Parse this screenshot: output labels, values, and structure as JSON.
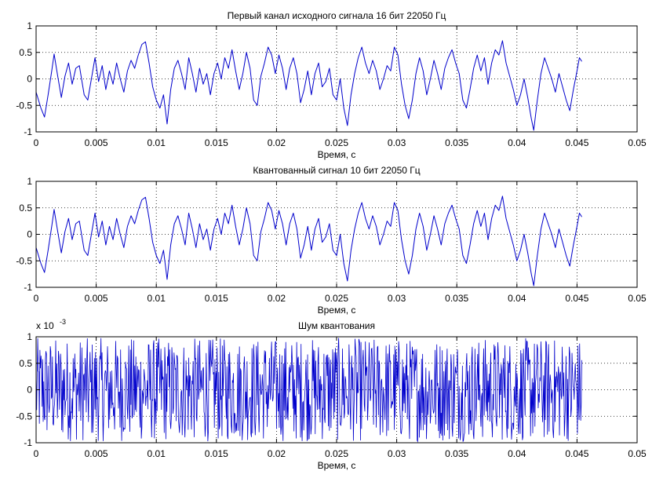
{
  "figure": {
    "background": "#ffffff",
    "line_color": "#0000cc"
  },
  "chart_data": [
    {
      "type": "line",
      "title": "Первый канал исходного сигнала 16 бит 22050 Гц",
      "xlabel": "Время, с",
      "ylabel": "",
      "xlim": [
        0,
        0.05
      ],
      "ylim": [
        -1,
        1
      ],
      "xticks": [
        "0",
        "0.005",
        "0.01",
        "0.015",
        "0.02",
        "0.025",
        "0.03",
        "0.035",
        "0.04",
        "0.045",
        "0.05"
      ],
      "yticks": [
        "-1",
        "-0.5",
        "0",
        "0.5",
        "1"
      ],
      "grid": true,
      "series": [
        {
          "color": "#0000cc",
          "x_start": 0,
          "x_end": 0.0454,
          "points": [
            [
              0.0,
              -0.25
            ],
            [
              0.0004,
              -0.55
            ],
            [
              0.0007,
              -0.72
            ],
            [
              0.001,
              -0.3
            ],
            [
              0.0013,
              0.15
            ],
            [
              0.0015,
              0.47
            ],
            [
              0.0018,
              0.05
            ],
            [
              0.0021,
              -0.35
            ],
            [
              0.0024,
              0.05
            ],
            [
              0.0027,
              0.3
            ],
            [
              0.003,
              -0.1
            ],
            [
              0.0033,
              0.2
            ],
            [
              0.0036,
              0.25
            ],
            [
              0.004,
              -0.3
            ],
            [
              0.0043,
              -0.4
            ],
            [
              0.0046,
              0.0
            ],
            [
              0.0049,
              0.4
            ],
            [
              0.0052,
              -0.05
            ],
            [
              0.0055,
              0.25
            ],
            [
              0.0058,
              -0.2
            ],
            [
              0.0061,
              0.15
            ],
            [
              0.0064,
              -0.1
            ],
            [
              0.0067,
              0.3
            ],
            [
              0.007,
              0.0
            ],
            [
              0.0073,
              -0.25
            ],
            [
              0.0076,
              0.15
            ],
            [
              0.0079,
              0.35
            ],
            [
              0.0082,
              0.2
            ],
            [
              0.0085,
              0.45
            ],
            [
              0.0088,
              0.65
            ],
            [
              0.0091,
              0.7
            ],
            [
              0.0094,
              0.3
            ],
            [
              0.0097,
              -0.15
            ],
            [
              0.01,
              -0.4
            ],
            [
              0.0103,
              -0.55
            ],
            [
              0.0106,
              -0.3
            ],
            [
              0.0109,
              -0.85
            ],
            [
              0.0112,
              -0.2
            ],
            [
              0.0115,
              0.2
            ],
            [
              0.0118,
              0.35
            ],
            [
              0.0121,
              0.1
            ],
            [
              0.0124,
              -0.2
            ],
            [
              0.0127,
              0.4
            ],
            [
              0.013,
              0.1
            ],
            [
              0.0133,
              -0.25
            ],
            [
              0.0136,
              0.2
            ],
            [
              0.0139,
              -0.1
            ],
            [
              0.0142,
              0.1
            ],
            [
              0.0145,
              -0.3
            ],
            [
              0.0148,
              0.1
            ],
            [
              0.0151,
              0.3
            ],
            [
              0.0154,
              0.0
            ],
            [
              0.0157,
              0.4
            ],
            [
              0.016,
              0.2
            ],
            [
              0.0163,
              0.55
            ],
            [
              0.0166,
              0.15
            ],
            [
              0.0169,
              -0.2
            ],
            [
              0.0172,
              0.1
            ],
            [
              0.0175,
              0.5
            ],
            [
              0.0178,
              0.2
            ],
            [
              0.0181,
              -0.4
            ],
            [
              0.0184,
              -0.5
            ],
            [
              0.0187,
              0.05
            ],
            [
              0.019,
              0.3
            ],
            [
              0.0193,
              0.6
            ],
            [
              0.0196,
              0.45
            ],
            [
              0.0199,
              0.1
            ],
            [
              0.0202,
              0.45
            ],
            [
              0.0205,
              0.2
            ],
            [
              0.0208,
              -0.2
            ],
            [
              0.0211,
              0.2
            ],
            [
              0.0214,
              0.4
            ],
            [
              0.0217,
              0.1
            ],
            [
              0.022,
              -0.45
            ],
            [
              0.0223,
              -0.2
            ],
            [
              0.0226,
              0.15
            ],
            [
              0.0229,
              -0.3
            ],
            [
              0.0232,
              0.1
            ],
            [
              0.0235,
              0.3
            ],
            [
              0.0238,
              -0.15
            ],
            [
              0.0241,
              -0.05
            ],
            [
              0.0244,
              0.2
            ],
            [
              0.0247,
              -0.3
            ],
            [
              0.025,
              -0.4
            ],
            [
              0.0253,
              0.0
            ],
            [
              0.0256,
              -0.55
            ],
            [
              0.0259,
              -0.88
            ],
            [
              0.0262,
              -0.3
            ],
            [
              0.0265,
              0.1
            ],
            [
              0.0268,
              0.4
            ],
            [
              0.0271,
              0.6
            ],
            [
              0.0274,
              0.3
            ],
            [
              0.0277,
              0.1
            ],
            [
              0.028,
              0.35
            ],
            [
              0.0283,
              0.15
            ],
            [
              0.0286,
              -0.2
            ],
            [
              0.0289,
              0.0
            ],
            [
              0.0292,
              0.25
            ],
            [
              0.0295,
              0.15
            ],
            [
              0.0298,
              0.6
            ],
            [
              0.0301,
              0.45
            ],
            [
              0.0304,
              -0.1
            ],
            [
              0.0307,
              -0.5
            ],
            [
              0.031,
              -0.75
            ],
            [
              0.0313,
              -0.4
            ],
            [
              0.0316,
              0.1
            ],
            [
              0.0319,
              0.4
            ],
            [
              0.0322,
              0.15
            ],
            [
              0.0325,
              -0.3
            ],
            [
              0.0328,
              0.0
            ],
            [
              0.0331,
              0.35
            ],
            [
              0.0334,
              0.1
            ],
            [
              0.0337,
              -0.2
            ],
            [
              0.034,
              0.2
            ],
            [
              0.0343,
              0.4
            ],
            [
              0.0346,
              0.55
            ],
            [
              0.0349,
              0.3
            ],
            [
              0.0352,
              0.1
            ],
            [
              0.0355,
              -0.4
            ],
            [
              0.0358,
              -0.55
            ],
            [
              0.0361,
              -0.2
            ],
            [
              0.0364,
              0.2
            ],
            [
              0.0367,
              0.45
            ],
            [
              0.037,
              0.15
            ],
            [
              0.0373,
              0.4
            ],
            [
              0.0376,
              -0.1
            ],
            [
              0.0379,
              0.3
            ],
            [
              0.0382,
              0.55
            ],
            [
              0.0385,
              0.45
            ],
            [
              0.0388,
              0.72
            ],
            [
              0.0391,
              0.3
            ],
            [
              0.0394,
              0.05
            ],
            [
              0.0397,
              -0.2
            ],
            [
              0.04,
              -0.5
            ],
            [
              0.0403,
              -0.3
            ],
            [
              0.0406,
              0.0
            ],
            [
              0.0409,
              -0.35
            ],
            [
              0.0412,
              -0.75
            ],
            [
              0.0414,
              -0.97
            ],
            [
              0.0417,
              -0.4
            ],
            [
              0.042,
              0.1
            ],
            [
              0.0423,
              0.4
            ],
            [
              0.0426,
              0.2
            ],
            [
              0.0429,
              0.0
            ],
            [
              0.0432,
              -0.25
            ],
            [
              0.0435,
              0.1
            ],
            [
              0.0438,
              -0.15
            ],
            [
              0.0441,
              -0.4
            ],
            [
              0.0444,
              -0.6
            ],
            [
              0.0447,
              -0.2
            ],
            [
              0.045,
              0.15
            ],
            [
              0.0452,
              0.4
            ],
            [
              0.0454,
              0.33
            ]
          ]
        }
      ]
    },
    {
      "type": "line",
      "title": "Квантованный сигнал 10 бит 22050 Гц",
      "xlabel": "Время, с",
      "ylabel": "",
      "xlim": [
        0,
        0.05
      ],
      "ylim": [
        -1,
        1
      ],
      "xticks": [
        "0",
        "0.005",
        "0.01",
        "0.015",
        "0.02",
        "0.025",
        "0.03",
        "0.035",
        "0.04",
        "0.045",
        "0.05"
      ],
      "yticks": [
        "-1",
        "-0.5",
        "0",
        "0.5",
        "1"
      ],
      "grid": true,
      "series": [
        {
          "color": "#0000cc",
          "x_start": 0,
          "x_end": 0.0454,
          "same_as_chart": 0
        }
      ]
    },
    {
      "type": "line",
      "title": "Шум квантования",
      "xlabel": "Время, с",
      "ylabel": "",
      "multiplier": "x 10",
      "multiplier_exponent": "-3",
      "xlim": [
        0,
        0.05
      ],
      "ylim": [
        -1,
        1
      ],
      "xticks": [
        "0",
        "0.005",
        "0.01",
        "0.015",
        "0.02",
        "0.025",
        "0.03",
        "0.035",
        "0.04",
        "0.045",
        "0.05"
      ],
      "yticks": [
        "-1",
        "-0.5",
        "0",
        "0.5",
        "1"
      ],
      "grid": true,
      "series": [
        {
          "color": "#0000cc",
          "x_start": 0,
          "x_end": 0.0454,
          "n_samples": 1002,
          "amplitude": 0.98,
          "distribution": "uniform"
        }
      ]
    }
  ]
}
